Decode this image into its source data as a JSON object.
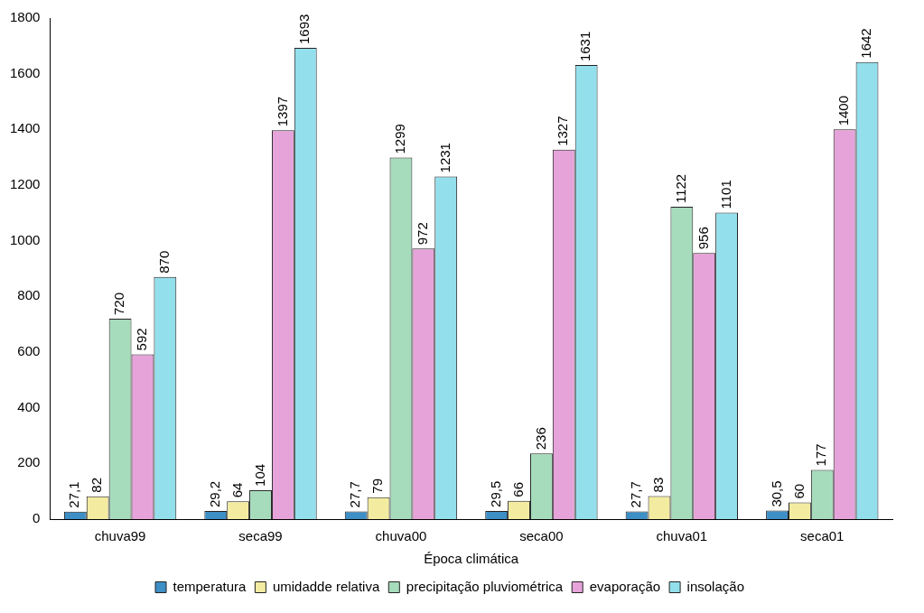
{
  "chart_data": {
    "type": "bar",
    "xlabel": "Época climática",
    "categories": [
      "chuva99",
      "seca99",
      "chuva00",
      "seca00",
      "chuva01",
      "seca01"
    ],
    "series": [
      {
        "name": "temperatura",
        "color": "#3d8fc6",
        "values": [
          27.1,
          29.2,
          27.7,
          29.5,
          27.7,
          30.5
        ],
        "value_labels": [
          "27,1",
          "29,2",
          "27,7",
          "29,5",
          "27,7",
          "30,5"
        ]
      },
      {
        "name": "umidadde relativa",
        "color": "#f3eca0",
        "values": [
          82,
          64,
          79,
          66,
          83,
          60
        ],
        "value_labels": [
          "82",
          "64",
          "79",
          "66",
          "83",
          "60"
        ]
      },
      {
        "name": "precipitação pluviométrica",
        "color": "#a6dcbc",
        "values": [
          720,
          104,
          1299,
          236,
          1122,
          177
        ],
        "value_labels": [
          "720",
          "104",
          "1299",
          "236",
          "1122",
          "177"
        ]
      },
      {
        "name": "evaporação",
        "color": "#e6a3d9",
        "values": [
          592,
          1397,
          972,
          1327,
          956,
          1400
        ],
        "value_labels": [
          "592",
          "1397",
          "972",
          "1327",
          "956",
          "1400"
        ]
      },
      {
        "name": "insolação",
        "color": "#93dfec",
        "values": [
          870,
          1693,
          1231,
          1631,
          1101,
          1642
        ],
        "value_labels": [
          "870",
          "1693",
          "1231",
          "1631",
          "1101",
          "1642"
        ]
      }
    ],
    "ylim": [
      0,
      1800
    ],
    "yticks": [
      0,
      200,
      400,
      600,
      800,
      1000,
      1200,
      1400,
      1600,
      1800
    ],
    "grid": false,
    "legend": "bottom"
  }
}
